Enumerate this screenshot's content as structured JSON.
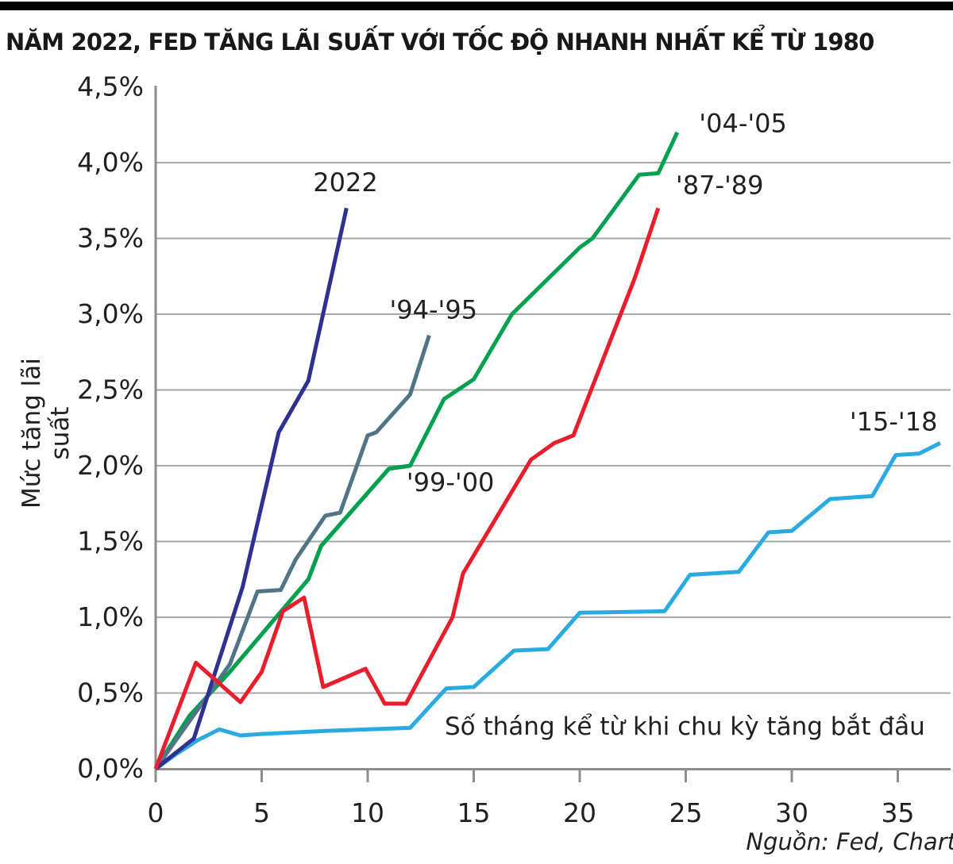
{
  "title_bar": {
    "title": "NĂM 2022, FED TĂNG LÃI SUẤT VỚI TỐC ĐỘ NHANH NHẤT KỂ TỪ 1980"
  },
  "chart_data": {
    "type": "line",
    "title": "NĂM 2022, FED TĂNG LÃI SUẤT VỚI TỐC ĐỘ NHANH NHẤT KỂ TỪ 1980",
    "xlabel": "Số tháng kể từ khi chu kỳ tăng bắt đầu",
    "ylabel": "Mức tăng lãi suất",
    "xlim": [
      0,
      37.5
    ],
    "ylim": [
      0,
      4.5
    ],
    "x_ticks": [
      0,
      5,
      10,
      15,
      20,
      25,
      30,
      35
    ],
    "y_ticks": [
      {
        "value": 0.0,
        "label": "0,0%"
      },
      {
        "value": 0.5,
        "label": "0,5%"
      },
      {
        "value": 1.0,
        "label": "1,0%"
      },
      {
        "value": 1.5,
        "label": "1,5%"
      },
      {
        "value": 2.0,
        "label": "2,0%"
      },
      {
        "value": 2.5,
        "label": "2,5%"
      },
      {
        "value": 3.0,
        "label": "3,0%"
      },
      {
        "value": 3.5,
        "label": "3,5%"
      },
      {
        "value": 4.0,
        "label": "4,0%"
      },
      {
        "value": 4.5,
        "label": "4,5%"
      }
    ],
    "grid": "horizontal-only",
    "legend": "inline-labels",
    "unit": "percentage points since cycle start",
    "series": [
      {
        "name": "'15-'18",
        "color": "#29abe2",
        "label": {
          "text": "'15-'18",
          "x": 34.8,
          "y": 2.29
        },
        "points": [
          [
            0,
            0
          ],
          [
            1,
            0.1
          ],
          [
            2,
            0.19
          ],
          [
            3,
            0.26
          ],
          [
            4,
            0.22
          ],
          [
            5,
            0.23
          ],
          [
            8,
            0.25
          ],
          [
            12,
            0.27
          ],
          [
            13.7,
            0.53
          ],
          [
            15,
            0.54
          ],
          [
            16.9,
            0.78
          ],
          [
            18.5,
            0.79
          ],
          [
            20,
            1.03
          ],
          [
            24,
            1.04
          ],
          [
            25.2,
            1.28
          ],
          [
            27.5,
            1.3
          ],
          [
            28.9,
            1.56
          ],
          [
            30,
            1.57
          ],
          [
            31.8,
            1.78
          ],
          [
            33.8,
            1.8
          ],
          [
            34.9,
            2.07
          ],
          [
            36,
            2.08
          ],
          [
            37,
            2.15
          ]
        ]
      },
      {
        "name": "'99-'00",
        "color": "#00a14e",
        "label": {
          "text": "'99-'00",
          "x": 13.9,
          "y": 1.89
        },
        "points": [
          [
            0,
            0
          ],
          [
            1.6,
            0.35
          ],
          [
            3.5,
            0.64
          ],
          [
            7.2,
            1.25
          ],
          [
            7.8,
            1.47
          ],
          [
            11,
            1.98
          ],
          [
            12,
            2.0
          ]
        ]
      },
      {
        "name": "'04-'05",
        "color": "#00a14e",
        "label": {
          "text": "'04-'05",
          "x": 27.7,
          "y": 4.26
        },
        "points": [
          [
            0,
            0
          ],
          [
            1.6,
            0.35
          ],
          [
            3.5,
            0.64
          ],
          [
            7.2,
            1.25
          ],
          [
            7.8,
            1.47
          ],
          [
            11,
            1.98
          ],
          [
            12,
            2.0
          ],
          [
            13.6,
            2.44
          ],
          [
            15,
            2.57
          ],
          [
            16.8,
            3.0
          ],
          [
            20,
            3.44
          ],
          [
            20.6,
            3.5
          ],
          [
            22.8,
            3.92
          ],
          [
            23.7,
            3.93
          ],
          [
            24.6,
            4.2
          ]
        ]
      },
      {
        "name": "'94-'95",
        "color": "#4f7587",
        "label": {
          "text": "'94-'95",
          "x": 13.1,
          "y": 3.03
        },
        "points": [
          [
            0,
            0
          ],
          [
            3.5,
            0.69
          ],
          [
            4.8,
            1.17
          ],
          [
            5.9,
            1.18
          ],
          [
            6.6,
            1.38
          ],
          [
            8,
            1.67
          ],
          [
            8.7,
            1.69
          ],
          [
            10,
            2.2
          ],
          [
            10.4,
            2.22
          ],
          [
            12,
            2.47
          ],
          [
            12.9,
            2.86
          ]
        ]
      },
      {
        "name": "2022",
        "color": "#2e3192",
        "label": {
          "text": "2022",
          "x": 8.95,
          "y": 3.87
        },
        "points": [
          [
            0,
            0
          ],
          [
            1.8,
            0.2
          ],
          [
            4.1,
            1.2
          ],
          [
            5.8,
            2.22
          ],
          [
            7.2,
            2.56
          ],
          [
            9,
            3.7
          ]
        ]
      },
      {
        "name": "'87-'89",
        "color": "#e91d2c",
        "label": {
          "text": "'87-'89",
          "x": 26.6,
          "y": 3.85
        },
        "points": [
          [
            0,
            0
          ],
          [
            1.9,
            0.7
          ],
          [
            4,
            0.44
          ],
          [
            5,
            0.64
          ],
          [
            6,
            1.04
          ],
          [
            7,
            1.13
          ],
          [
            7.9,
            0.54
          ],
          [
            9.9,
            0.66
          ],
          [
            10.8,
            0.43
          ],
          [
            11.8,
            0.43
          ],
          [
            14,
            1.0
          ],
          [
            14.5,
            1.29
          ],
          [
            17.7,
            2.04
          ],
          [
            18.8,
            2.15
          ],
          [
            19.7,
            2.2
          ],
          [
            22.6,
            3.24
          ],
          [
            23.7,
            3.7
          ]
        ]
      }
    ]
  },
  "source": {
    "text": "Nguồn: Fed, Chart"
  },
  "colors": {
    "grid": "#a6a8ab",
    "axis": "#8b8d90",
    "text": "#231f20",
    "top_bar": "#000000",
    "background": "#ffffff"
  }
}
